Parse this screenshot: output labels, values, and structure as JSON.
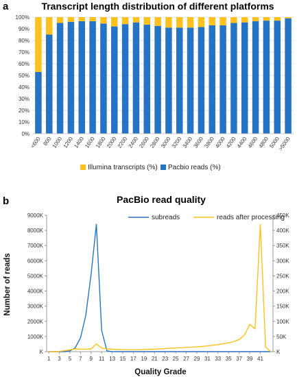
{
  "chart_data": [
    {
      "type": "bar",
      "stacked": true,
      "label": "a",
      "title": "Transcript length distribution of different platforms",
      "categories": [
        "<600",
        "800",
        "1000",
        "1200",
        "1400",
        "1600",
        "1800",
        "2000",
        "2200",
        "2400",
        "2600",
        "2800",
        "3000",
        "3200",
        "3400",
        "3600",
        "3800",
        "4000",
        "4200",
        "4400",
        "4600",
        "4800",
        "5000",
        ">5000"
      ],
      "series": [
        {
          "name": "Pacbio reads (%)",
          "color": "#2672C4",
          "values": [
            53,
            85,
            95,
            96,
            96.5,
            96.5,
            94.5,
            92,
            94,
            95.5,
            93.5,
            92.5,
            91,
            91,
            91,
            91.5,
            93,
            93,
            95,
            95.5,
            96.5,
            97,
            97,
            99
          ]
        },
        {
          "name": "Illumina transcripts (%)",
          "color": "#FFC11E",
          "values": [
            47,
            15,
            5,
            4,
            3.5,
            3.5,
            5.5,
            8,
            6,
            4.5,
            6.5,
            7.5,
            9,
            9,
            9,
            8.5,
            7,
            7,
            5,
            4.5,
            3.5,
            3,
            3,
            1
          ]
        }
      ],
      "y_ticks": [
        "0%",
        "10%",
        "20%",
        "30%",
        "40%",
        "50%",
        "60%",
        "70%",
        "80%",
        "90%",
        "100%"
      ],
      "ylim": [
        0,
        100
      ],
      "legend": [
        "Illumina transcripts (%)",
        "Pacbio reads (%)"
      ],
      "legend_position": "bottom",
      "grid": true
    },
    {
      "type": "line",
      "label": "b",
      "title": "PacBio read quality",
      "xlabel": "Quality Grade",
      "ylabel": "Number of reads",
      "x_ticks": [
        "1",
        "3",
        "5",
        "7",
        "9",
        "11",
        "13",
        "15",
        "17",
        "19",
        "21",
        "23",
        "25",
        "27",
        "29",
        "31",
        "33",
        "35",
        "37",
        "39",
        "41"
      ],
      "y_left_ticks": [
        "K",
        "1000K",
        "2000K",
        "3000K",
        "4000K",
        "5000K",
        "6000K",
        "7000K",
        "8000K",
        "9000K"
      ],
      "y_right_ticks": [
        "K",
        "50K",
        "100K",
        "150K",
        "200K",
        "250K",
        "300K",
        "350K",
        "400K",
        "450K"
      ],
      "y_left_lim": [
        0,
        9000
      ],
      "y_right_lim": [
        0,
        450
      ],
      "legend_position": "top-right",
      "grid": false,
      "series": [
        {
          "name": "subreads",
          "axis": "left",
          "color": "#2672C4",
          "x": [
            1,
            2,
            3,
            4,
            5,
            6,
            7,
            8,
            9,
            10,
            11,
            12,
            13,
            14,
            15,
            16,
            17,
            18,
            19,
            20,
            21,
            22,
            23,
            24,
            25,
            26,
            27,
            28,
            29,
            30,
            31,
            32,
            33,
            34,
            35,
            36,
            37,
            38,
            39,
            40,
            41,
            42,
            43
          ],
          "y": [
            0,
            0,
            0,
            0,
            50,
            250,
            900,
            2400,
            5100,
            8400,
            1400,
            50,
            5,
            0,
            0,
            0,
            0,
            0,
            0,
            0,
            0,
            0,
            0,
            0,
            0,
            0,
            0,
            0,
            0,
            0,
            0,
            0,
            0,
            0,
            0,
            0,
            0,
            0,
            0,
            0,
            0,
            0,
            0
          ]
        },
        {
          "name": "reads after processing",
          "axis": "right",
          "color": "#FFC11E",
          "x": [
            1,
            2,
            3,
            4,
            5,
            6,
            7,
            8,
            9,
            10,
            11,
            12,
            13,
            14,
            15,
            16,
            17,
            18,
            19,
            20,
            21,
            22,
            23,
            24,
            25,
            26,
            27,
            28,
            29,
            30,
            31,
            32,
            33,
            34,
            35,
            36,
            37,
            38,
            39,
            40,
            41,
            42,
            43
          ],
          "y": [
            0,
            0,
            1,
            3,
            6,
            9,
            8,
            8,
            9,
            25,
            12,
            9,
            8,
            7,
            7,
            6,
            6,
            6,
            7,
            8,
            8,
            9,
            10,
            11,
            12,
            13,
            14,
            15,
            16,
            17,
            19,
            21,
            23,
            26,
            29,
            33,
            40,
            55,
            90,
            75,
            420,
            15,
            0
          ]
        }
      ]
    }
  ]
}
